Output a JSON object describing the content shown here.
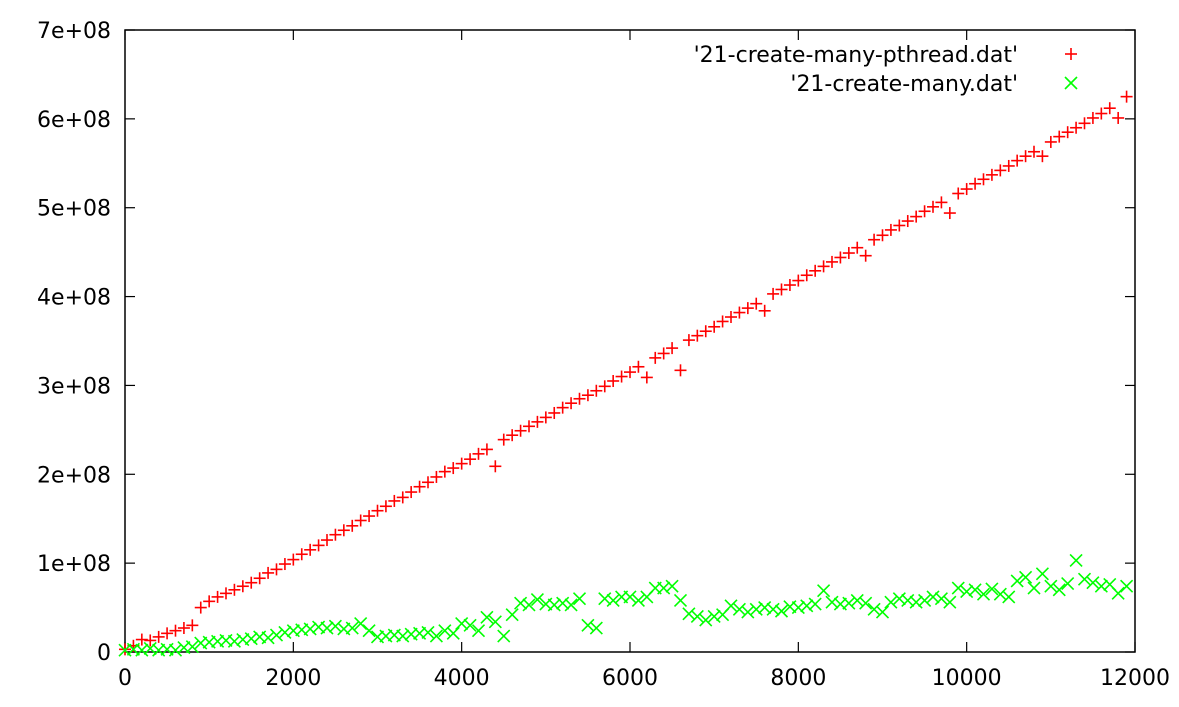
{
  "chart_data": {
    "type": "scatter",
    "title": "",
    "xlabel": "",
    "ylabel": "",
    "xlim": [
      0,
      12000
    ],
    "ylim": [
      0,
      700000000
    ],
    "x_ticks": [
      0,
      2000,
      4000,
      6000,
      8000,
      10000,
      12000
    ],
    "x_tick_labels": [
      "0",
      "2000",
      "4000",
      "6000",
      "8000",
      "10000",
      "12000"
    ],
    "y_ticks": [
      0,
      100000000,
      200000000,
      300000000,
      400000000,
      500000000,
      600000000,
      700000000
    ],
    "y_tick_labels": [
      "0",
      "1e+08",
      "2e+08",
      "3e+08",
      "4e+08",
      "5e+08",
      "6e+08",
      "7e+08"
    ],
    "grid": false,
    "legend_position": "top-right",
    "series": [
      {
        "name": "'21-create-many-pthread.dat'",
        "marker": "plus",
        "color": "#ff0000",
        "x": [
          0,
          100,
          200,
          300,
          400,
          500,
          600,
          700,
          800,
          900,
          1000,
          1100,
          1200,
          1300,
          1400,
          1500,
          1600,
          1700,
          1800,
          1900,
          2000,
          2100,
          2200,
          2300,
          2400,
          2500,
          2600,
          2700,
          2800,
          2900,
          3000,
          3100,
          3200,
          3300,
          3400,
          3500,
          3600,
          3700,
          3800,
          3900,
          4000,
          4100,
          4200,
          4300,
          4400,
          4500,
          4600,
          4700,
          4800,
          4900,
          5000,
          5100,
          5200,
          5300,
          5400,
          5500,
          5600,
          5700,
          5800,
          5900,
          6000,
          6100,
          6200,
          6300,
          6400,
          6500,
          6600,
          6700,
          6800,
          6900,
          7000,
          7100,
          7200,
          7300,
          7400,
          7500,
          7600,
          7700,
          7800,
          7900,
          8000,
          8100,
          8200,
          8300,
          8400,
          8500,
          8600,
          8700,
          8800,
          8900,
          9000,
          9100,
          9200,
          9300,
          9400,
          9500,
          9600,
          9700,
          9800,
          9900,
          10000,
          10100,
          10200,
          10300,
          10400,
          10500,
          10600,
          10700,
          10800,
          10900,
          11000,
          11100,
          11200,
          11300,
          11400,
          11500,
          11600,
          11700,
          11800,
          11900
        ],
        "y": [
          3000000,
          7000000,
          14000000,
          13000000,
          17000000,
          21000000,
          24000000,
          27000000,
          30000000,
          50000000,
          57000000,
          62000000,
          66000000,
          70000000,
          74000000,
          78000000,
          83000000,
          89000000,
          93000000,
          99000000,
          104000000,
          110000000,
          115000000,
          120000000,
          126000000,
          132000000,
          137000000,
          142000000,
          148000000,
          153000000,
          159000000,
          164000000,
          170000000,
          174000000,
          180000000,
          186000000,
          191000000,
          197000000,
          203000000,
          207000000,
          212000000,
          217000000,
          223000000,
          228000000,
          209000000,
          239000000,
          244000000,
          249000000,
          254000000,
          259000000,
          264000000,
          269000000,
          275000000,
          280000000,
          285000000,
          289000000,
          294000000,
          299000000,
          305000000,
          310000000,
          315000000,
          321000000,
          309000000,
          331000000,
          336000000,
          342000000,
          317000000,
          351000000,
          356000000,
          361000000,
          366000000,
          372000000,
          377000000,
          382000000,
          387000000,
          392000000,
          384000000,
          403000000,
          408000000,
          413000000,
          418000000,
          424000000,
          429000000,
          434000000,
          439000000,
          444000000,
          449000000,
          455000000,
          446000000,
          464000000,
          469000000,
          475000000,
          480000000,
          485000000,
          490000000,
          496000000,
          501000000,
          506000000,
          494000000,
          516000000,
          521000000,
          527000000,
          532000000,
          537000000,
          542000000,
          547000000,
          553000000,
          558000000,
          563000000,
          558000000,
          574000000,
          580000000,
          585000000,
          590000000,
          595000000,
          601000000,
          606000000,
          612000000,
          601000000,
          625000000
        ]
      },
      {
        "name": "'21-create-many.dat'",
        "marker": "cross",
        "color": "#00ff00",
        "x": [
          0,
          100,
          200,
          300,
          400,
          500,
          600,
          700,
          800,
          900,
          1000,
          1100,
          1200,
          1300,
          1400,
          1500,
          1600,
          1700,
          1800,
          1900,
          2000,
          2100,
          2200,
          2300,
          2400,
          2500,
          2600,
          2700,
          2800,
          2900,
          3000,
          3100,
          3200,
          3300,
          3400,
          3500,
          3600,
          3700,
          3800,
          3900,
          4000,
          4100,
          4200,
          4300,
          4400,
          4500,
          4600,
          4700,
          4800,
          4900,
          5000,
          5100,
          5200,
          5300,
          5400,
          5500,
          5600,
          5700,
          5800,
          5900,
          6000,
          6100,
          6200,
          6300,
          6400,
          6500,
          6600,
          6700,
          6800,
          6900,
          7000,
          7100,
          7200,
          7300,
          7400,
          7500,
          7600,
          7700,
          7800,
          7900,
          8000,
          8100,
          8200,
          8300,
          8400,
          8500,
          8600,
          8700,
          8800,
          8900,
          9000,
          9100,
          9200,
          9300,
          9400,
          9500,
          9600,
          9700,
          9800,
          9900,
          10000,
          10100,
          10200,
          10300,
          10400,
          10500,
          10600,
          10700,
          10800,
          10900,
          11000,
          11100,
          11200,
          11300,
          11400,
          11500,
          11600,
          11700,
          11800,
          11900
        ],
        "y": [
          2000000,
          3000000,
          2000000,
          4000000,
          2000000,
          3000000,
          2000000,
          5000000,
          6000000,
          10000000,
          11000000,
          12000000,
          13000000,
          12000000,
          14000000,
          15000000,
          17000000,
          16000000,
          19000000,
          22000000,
          24000000,
          25000000,
          26000000,
          28000000,
          27000000,
          29000000,
          26000000,
          27000000,
          32000000,
          24000000,
          17000000,
          18000000,
          19000000,
          18000000,
          20000000,
          21000000,
          22000000,
          18000000,
          24000000,
          21000000,
          32000000,
          30000000,
          24000000,
          39000000,
          34000000,
          18000000,
          42000000,
          55000000,
          53000000,
          59000000,
          54000000,
          53000000,
          55000000,
          53000000,
          60000000,
          30000000,
          27000000,
          60000000,
          58000000,
          62000000,
          62000000,
          58000000,
          62000000,
          72000000,
          72000000,
          74000000,
          58000000,
          43000000,
          40000000,
          36000000,
          40000000,
          42000000,
          52000000,
          48000000,
          45000000,
          48000000,
          50000000,
          48000000,
          46000000,
          51000000,
          50000000,
          52000000,
          54000000,
          69000000,
          56000000,
          54000000,
          55000000,
          58000000,
          55000000,
          48000000,
          45000000,
          56000000,
          60000000,
          58000000,
          56000000,
          58000000,
          62000000,
          60000000,
          56000000,
          72000000,
          68000000,
          70000000,
          65000000,
          71000000,
          65000000,
          62000000,
          80000000,
          84000000,
          72000000,
          88000000,
          74000000,
          70000000,
          77000000,
          103000000,
          82000000,
          78000000,
          74000000,
          76000000,
          66000000,
          74000000
        ]
      }
    ]
  }
}
